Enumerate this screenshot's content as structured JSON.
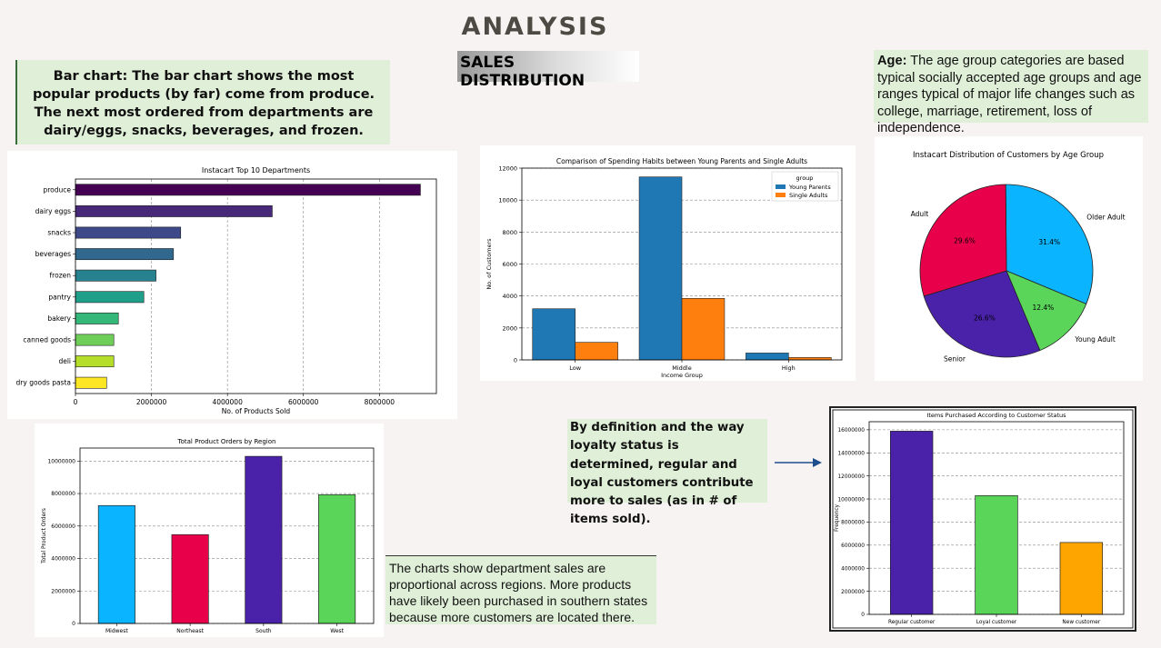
{
  "page": {
    "title": "ANALYSIS",
    "subtitle": "SALES DISTRIBUTION"
  },
  "notes": {
    "bar_chart": "Bar chart: The bar chart shows the most popular products (by far) come from produce. The next most ordered from departments are dairy/eggs, snacks, beverages, and frozen.",
    "age_label": "Age:",
    "age_text": " The age group categories are based typical socially accepted age groups and age ranges typical of major life changes such as college, marriage, retirement, loss of independence.",
    "loyalty": "By  definition and the way loyalty status is determined, regular and loyal customers contribute more to sales (as in # of items sold).",
    "regions": "The charts show department sales are proportional across regions. More products have likely been purchased in southern states because more customers are located there."
  },
  "chart_data": [
    {
      "id": "departments",
      "type": "bar",
      "orientation": "horizontal",
      "title": "Instacart Top 10 Departments",
      "xlabel": "No. of Products Sold",
      "ylabel": "",
      "categories": [
        "produce",
        "dairy eggs",
        "snacks",
        "beverages",
        "frozen",
        "pantry",
        "bakery",
        "canned goods",
        "deli",
        "dry goods pasta"
      ],
      "values": [
        9080000,
        5180000,
        2770000,
        2580000,
        2120000,
        1800000,
        1130000,
        1010000,
        1010000,
        820000
      ],
      "colors": [
        "#440154",
        "#482878",
        "#3e4989",
        "#31688e",
        "#26828e",
        "#1f9e89",
        "#35b779",
        "#6ece58",
        "#b5de2b",
        "#fde725"
      ],
      "xlim": [
        0,
        9500000
      ],
      "xticks": [
        0,
        2000000,
        4000000,
        6000000,
        8000000
      ],
      "grid": "x"
    },
    {
      "id": "spending",
      "type": "bar",
      "title": "Comparison of Spending Habits between Young Parents and Single Adults",
      "xlabel": "Income Group",
      "ylabel": "No. of Customers",
      "categories": [
        "Low",
        "Middle",
        "High"
      ],
      "series": [
        {
          "name": "Young Parents",
          "values": [
            3200,
            11450,
            430
          ],
          "color": "#1f77b4"
        },
        {
          "name": "Single Adults",
          "values": [
            1100,
            3850,
            150
          ],
          "color": "#ff7f0e"
        }
      ],
      "legend_title": "group",
      "legend_position": "top-right",
      "ylim": [
        0,
        12000
      ],
      "yticks": [
        0,
        2000,
        4000,
        6000,
        8000,
        10000,
        12000
      ],
      "grid": "y"
    },
    {
      "id": "age",
      "type": "pie",
      "title": "Instacart Distribution of Customers by Age Group",
      "categories": [
        "Older Adult",
        "Young Adult",
        "Senior",
        "Adult"
      ],
      "values": [
        31.4,
        12.4,
        26.6,
        29.6
      ],
      "labels": [
        "31.4%",
        "12.4%",
        "26.6%",
        "29.6%"
      ],
      "colors": [
        "#0bb4ff",
        "#5ad55a",
        "#4a22aa",
        "#e8004a"
      ]
    },
    {
      "id": "regions",
      "type": "bar",
      "title": "Total Product Orders by Region",
      "xlabel": "",
      "ylabel": "Total Product Orders",
      "categories": [
        "Midwest",
        "Northeast",
        "South",
        "West"
      ],
      "values": [
        7260000,
        5470000,
        10290000,
        7930000
      ],
      "colors": [
        "#0bb4ff",
        "#e8004a",
        "#4a22aa",
        "#5ad55a"
      ],
      "ylim": [
        0,
        10800000
      ],
      "yticks": [
        0,
        2000000,
        4000000,
        6000000,
        8000000,
        10000000
      ],
      "grid": "y"
    },
    {
      "id": "loyalty",
      "type": "bar",
      "title": "Items Purchased According to Customer Status",
      "xlabel": "",
      "ylabel": "Frequency",
      "categories": [
        "Regular customer",
        "Loyal customer",
        "New customer"
      ],
      "values": [
        15880000,
        10290000,
        6230000
      ],
      "colors": [
        "#4a22aa",
        "#5ad55a",
        "#ffa500"
      ],
      "ylim": [
        0,
        16700000
      ],
      "yticks": [
        0,
        2000000,
        4000000,
        6000000,
        8000000,
        10000000,
        12000000,
        14000000,
        16000000
      ],
      "grid": "y"
    }
  ]
}
